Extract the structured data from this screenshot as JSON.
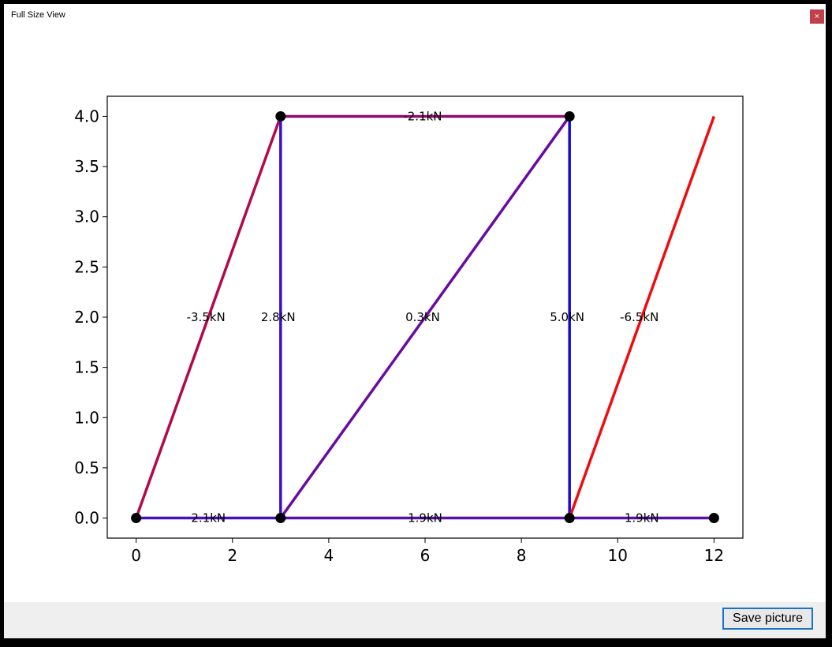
{
  "window": {
    "title": "Full Size View",
    "close_label": "×"
  },
  "footer": {
    "save_label": "Save picture"
  },
  "chart_data": {
    "type": "line",
    "xlim": [
      -0.6,
      12.6
    ],
    "ylim": [
      -0.2,
      4.2
    ],
    "xticks": [
      0,
      2,
      4,
      6,
      8,
      10,
      12
    ],
    "yticks": [
      0.0,
      0.5,
      1.0,
      1.5,
      2.0,
      2.5,
      3.0,
      3.5,
      4.0
    ],
    "xtick_labels": [
      "0",
      "2",
      "4",
      "6",
      "8",
      "10",
      "12"
    ],
    "ytick_labels": [
      "0.0",
      "0.5",
      "1.0",
      "1.5",
      "2.0",
      "2.5",
      "3.0",
      "3.5",
      "4.0"
    ],
    "nodes": [
      {
        "x": 0,
        "y": 0
      },
      {
        "x": 3,
        "y": 0
      },
      {
        "x": 9,
        "y": 0
      },
      {
        "x": 12,
        "y": 0
      },
      {
        "x": 3,
        "y": 4
      },
      {
        "x": 9,
        "y": 4
      }
    ],
    "members": [
      {
        "x1": 0,
        "y1": 0,
        "x2": 3,
        "y2": 0,
        "color": "#4a10b8",
        "label": "2.1kN",
        "lx": 1.5,
        "ly": 0.0
      },
      {
        "x1": 3,
        "y1": 0,
        "x2": 9,
        "y2": 0,
        "color": "#5a0fa8",
        "label": "1.9kN",
        "lx": 6.0,
        "ly": 0.0
      },
      {
        "x1": 9,
        "y1": 0,
        "x2": 12,
        "y2": 0,
        "color": "#5a0fa8",
        "label": "1.9kN",
        "lx": 10.5,
        "ly": 0.0
      },
      {
        "x1": 0,
        "y1": 0,
        "x2": 3,
        "y2": 4,
        "color": "#b3084a",
        "label": "-3.5kN",
        "lx": 1.45,
        "ly": 2.0
      },
      {
        "x1": 3,
        "y1": 0,
        "x2": 3,
        "y2": 4,
        "color": "#3a0cd0",
        "label": "2.8kN",
        "lx": 2.95,
        "ly": 2.0
      },
      {
        "x1": 3,
        "y1": 0,
        "x2": 9,
        "y2": 4,
        "color": "#6a0aa0",
        "label": "0.3kN",
        "lx": 5.95,
        "ly": 2.0
      },
      {
        "x1": 9,
        "y1": 0,
        "x2": 9,
        "y2": 4,
        "color": "#1a08d8",
        "label": "5.0kN",
        "lx": 8.95,
        "ly": 2.0
      },
      {
        "x1": 9,
        "y1": 0,
        "x2": 12,
        "y2": 4,
        "color": "#ee0c10",
        "label": "-6.5kN",
        "lx": 10.45,
        "ly": 2.0
      },
      {
        "x1": 3,
        "y1": 4,
        "x2": 9,
        "y2": 4,
        "color": "#8c0a6e",
        "label": "-2.1kN",
        "lx": 5.95,
        "ly": 4.0
      }
    ]
  }
}
